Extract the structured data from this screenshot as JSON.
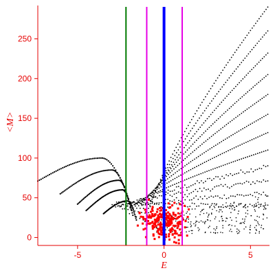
{
  "chart_data": {
    "type": "scatter",
    "xlabel": "E",
    "ylabel": "<M>",
    "xlim": [
      -7.3,
      6.1
    ],
    "ylim": [
      -10,
      292
    ],
    "x_ticks": [
      -5,
      0,
      5
    ],
    "y_ticks": [
      0,
      50,
      100,
      150,
      200,
      250
    ],
    "x_tick_labels": [
      "-5",
      "0",
      "5"
    ],
    "y_tick_labels": [
      "0",
      "50",
      "100",
      "150",
      "200",
      "250"
    ],
    "grid": false,
    "legend": "none",
    "axis_color": "#e60000",
    "vertical_lines": [
      {
        "x": -2.2,
        "color": "#007a00",
        "style": "thin"
      },
      {
        "x": -1.0,
        "color": "#e600e6",
        "style": "thin"
      },
      {
        "x": 0.0,
        "color": "#0000ff",
        "style": "thick"
      },
      {
        "x": 1.05,
        "color": "#e600e6",
        "style": "thin"
      }
    ],
    "series": [
      {
        "color": "#000000",
        "marker": "dot",
        "kind": "upper-branches",
        "curves": [
          {
            "start": [
              -1.0,
              20
            ],
            "end": [
              6.0,
              290
            ]
          },
          {
            "start": [
              -1.1,
              20
            ],
            "end": [
              6.0,
              260
            ]
          },
          {
            "start": [
              -1.2,
              22
            ],
            "end": [
              6.0,
              232
            ]
          },
          {
            "start": [
              -1.4,
              24
            ],
            "end": [
              6.0,
              205
            ]
          },
          {
            "start": [
              -1.6,
              26
            ],
            "end": [
              6.0,
              180
            ]
          },
          {
            "start": [
              -1.8,
              28
            ],
            "end": [
              6.0,
              155
            ]
          },
          {
            "start": [
              -2.0,
              30
            ],
            "end": [
              6.0,
              132
            ]
          },
          {
            "start": [
              -2.2,
              32
            ],
            "end": [
              6.0,
              110
            ]
          },
          {
            "start": [
              -2.4,
              35
            ],
            "end": [
              6.0,
              90
            ]
          },
          {
            "start": [
              -2.6,
              38
            ],
            "end": [
              6.0,
              72
            ]
          },
          {
            "start": [
              -2.8,
              40
            ],
            "end": [
              6.0,
              55
            ]
          },
          {
            "start": [
              -3.0,
              42
            ],
            "end": [
              6.0,
              40
            ]
          }
        ]
      },
      {
        "color": "#000000",
        "marker": "dot",
        "kind": "lower-branches",
        "curves": [
          {
            "start": [
              -7.3,
              71
            ],
            "peak": [
              -3.6,
              100
            ],
            "end": [
              -2.2,
              60
            ]
          },
          {
            "start": [
              -6.0,
              55
            ],
            "peak": [
              -3.0,
              85
            ],
            "end": [
              -2.0,
              45
            ]
          },
          {
            "start": [
              -5.0,
              42
            ],
            "peak": [
              -2.6,
              72
            ],
            "end": [
              -1.9,
              35
            ]
          },
          {
            "start": [
              -4.5,
              34
            ],
            "peak": [
              -2.4,
              60
            ],
            "end": [
              -1.8,
              28
            ]
          },
          {
            "start": [
              -3.5,
              30
            ],
            "peak": [
              -2.1,
              46
            ],
            "end": [
              -1.6,
              22
            ]
          }
        ]
      },
      {
        "color": "#ff0000",
        "marker": "square",
        "kind": "cluster",
        "center": [
          0.0,
          15
        ],
        "x_range": [
          -1.5,
          2.0
        ],
        "y_range": [
          -3,
          55
        ]
      }
    ]
  }
}
